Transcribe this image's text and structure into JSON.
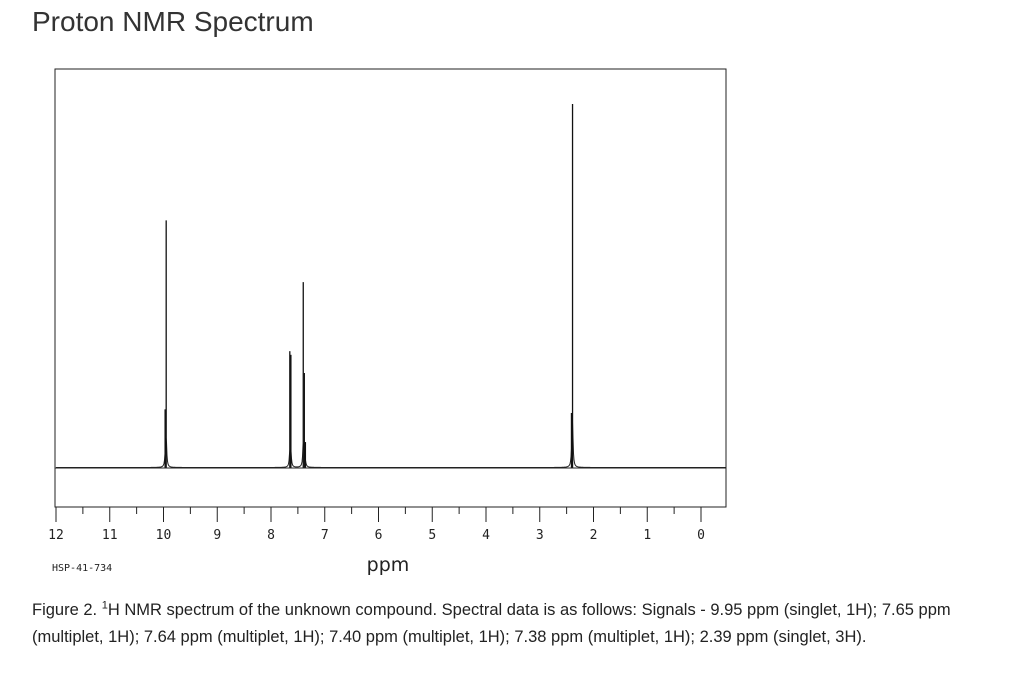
{
  "page": {
    "title": "Proton NMR Spectrum"
  },
  "chart_data": {
    "type": "line",
    "title": "",
    "xlabel": "ppm",
    "ylabel": "",
    "sample_id": "HSP-41-734",
    "xlim": [
      12,
      0
    ],
    "x_reversed": true,
    "ylim": [
      0,
      1
    ],
    "grid": false,
    "x_ticks": [
      "12",
      "11",
      "10",
      "9",
      "8",
      "7",
      "6",
      "5",
      "4",
      "3",
      "2",
      "1",
      "0"
    ],
    "peaks": [
      {
        "ppm": 9.95,
        "intensity": 0.68
      },
      {
        "ppm": 9.97,
        "intensity": 0.16
      },
      {
        "ppm": 7.65,
        "intensity": 0.32
      },
      {
        "ppm": 7.63,
        "intensity": 0.31
      },
      {
        "ppm": 7.4,
        "intensity": 0.51
      },
      {
        "ppm": 7.38,
        "intensity": 0.26
      },
      {
        "ppm": 7.36,
        "intensity": 0.07
      },
      {
        "ppm": 2.39,
        "intensity": 1.0
      },
      {
        "ppm": 2.41,
        "intensity": 0.15
      }
    ]
  },
  "caption": {
    "prefix": "Figure 2. ",
    "superscript": "1",
    "text": "H NMR spectrum of the unknown compound. Spectral data is as follows: Signals - 9.95 ppm (singlet, 1H); 7.65 ppm (multiplet, 1H); 7.64 ppm (multiplet, 1H); 7.40 ppm (multiplet, 1H); 7.38 ppm (multiplet, 1H); 2.39 ppm (singlet, 3H)."
  }
}
